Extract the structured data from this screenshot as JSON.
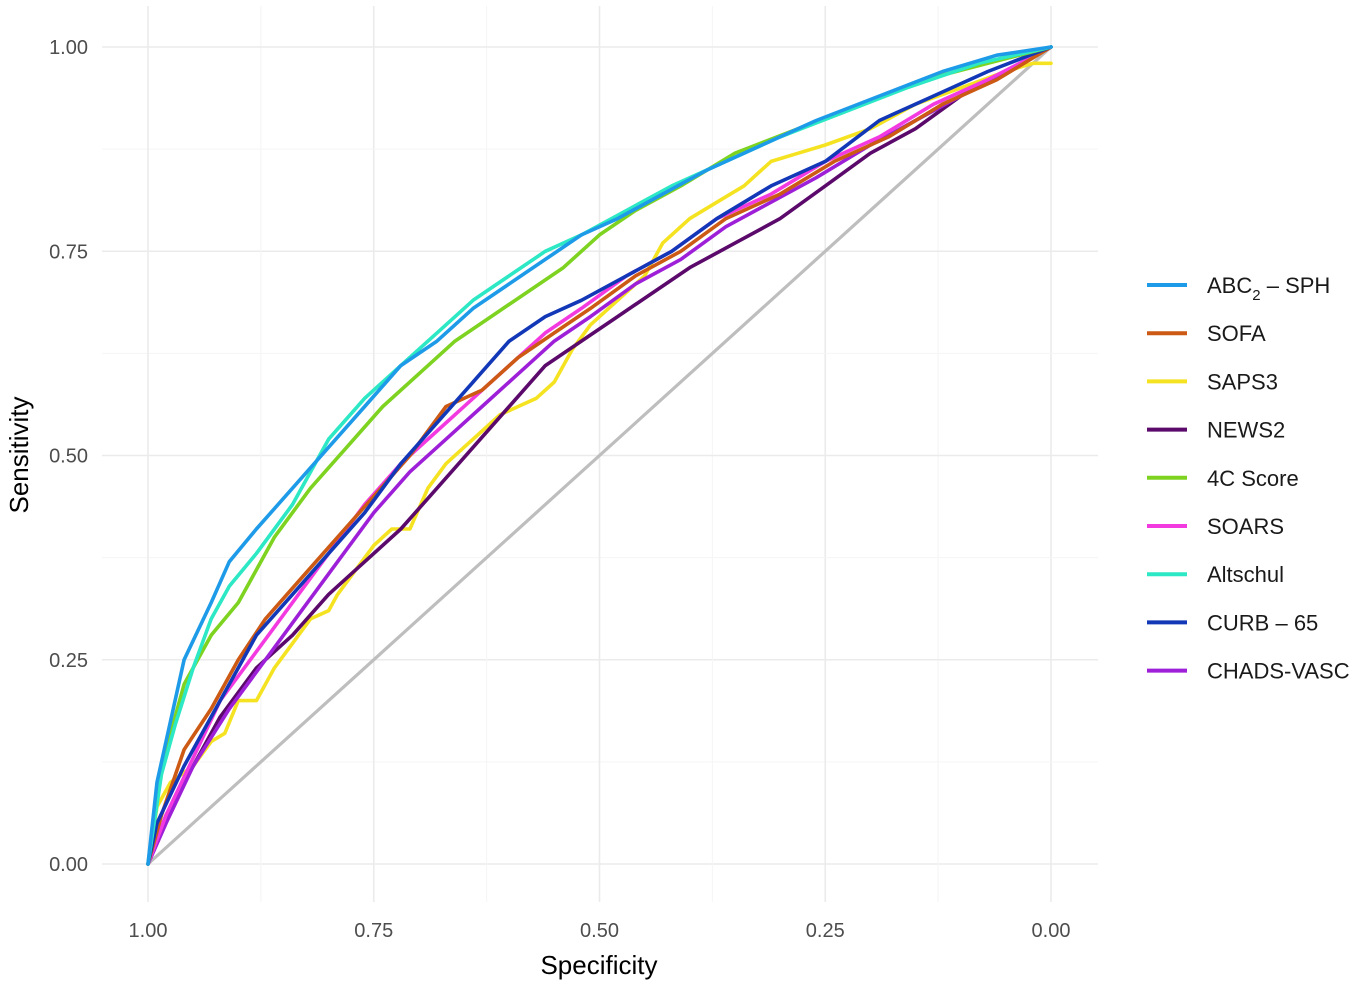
{
  "chart_data": {
    "type": "line",
    "title": "",
    "xlabel": "Specificity",
    "ylabel": "Sensitivity",
    "x_reversed": true,
    "xlim": [
      1.0,
      0.0
    ],
    "ylim": [
      0.0,
      1.0
    ],
    "x_ticks": [
      "1.00",
      "0.75",
      "0.50",
      "0.25",
      "0.00"
    ],
    "y_ticks": [
      "0.00",
      "0.25",
      "0.50",
      "0.75",
      "1.00"
    ],
    "grid": true,
    "legend_position": "right",
    "reference_line": {
      "color": "#bebebe",
      "points": [
        [
          1.0,
          0.0
        ],
        [
          0.0,
          1.0
        ]
      ]
    },
    "series": [
      {
        "name": "SAPS3",
        "label_main": "SAPS3",
        "color": "#f5e322",
        "points": [
          [
            1,
            0
          ],
          [
            0.99,
            0.07
          ],
          [
            0.975,
            0.1
          ],
          [
            0.95,
            0.12
          ],
          [
            0.93,
            0.15
          ],
          [
            0.915,
            0.16
          ],
          [
            0.9,
            0.2
          ],
          [
            0.88,
            0.2
          ],
          [
            0.86,
            0.24
          ],
          [
            0.84,
            0.27
          ],
          [
            0.82,
            0.3
          ],
          [
            0.8,
            0.31
          ],
          [
            0.79,
            0.33
          ],
          [
            0.77,
            0.36
          ],
          [
            0.75,
            0.39
          ],
          [
            0.73,
            0.41
          ],
          [
            0.71,
            0.41
          ],
          [
            0.69,
            0.46
          ],
          [
            0.67,
            0.49
          ],
          [
            0.65,
            0.51
          ],
          [
            0.63,
            0.53
          ],
          [
            0.61,
            0.55
          ],
          [
            0.59,
            0.56
          ],
          [
            0.57,
            0.57
          ],
          [
            0.55,
            0.59
          ],
          [
            0.53,
            0.63
          ],
          [
            0.51,
            0.66
          ],
          [
            0.48,
            0.69
          ],
          [
            0.45,
            0.72
          ],
          [
            0.43,
            0.76
          ],
          [
            0.4,
            0.79
          ],
          [
            0.37,
            0.81
          ],
          [
            0.34,
            0.83
          ],
          [
            0.31,
            0.86
          ],
          [
            0.28,
            0.87
          ],
          [
            0.25,
            0.88
          ],
          [
            0.2,
            0.9
          ],
          [
            0.15,
            0.93
          ],
          [
            0.1,
            0.95
          ],
          [
            0.05,
            0.97
          ],
          [
            0.02,
            0.98
          ],
          [
            0,
            0.98
          ]
        ]
      },
      {
        "name": "NEWS2",
        "label_main": "NEWS2",
        "color": "#5b0a6b",
        "points": [
          [
            1,
            0
          ],
          [
            0.98,
            0.06
          ],
          [
            0.95,
            0.12
          ],
          [
            0.92,
            0.18
          ],
          [
            0.88,
            0.24
          ],
          [
            0.84,
            0.28
          ],
          [
            0.8,
            0.33
          ],
          [
            0.76,
            0.37
          ],
          [
            0.72,
            0.41
          ],
          [
            0.68,
            0.46
          ],
          [
            0.64,
            0.51
          ],
          [
            0.6,
            0.56
          ],
          [
            0.56,
            0.61
          ],
          [
            0.52,
            0.64
          ],
          [
            0.48,
            0.67
          ],
          [
            0.44,
            0.7
          ],
          [
            0.4,
            0.73
          ],
          [
            0.35,
            0.76
          ],
          [
            0.3,
            0.79
          ],
          [
            0.25,
            0.83
          ],
          [
            0.2,
            0.87
          ],
          [
            0.15,
            0.9
          ],
          [
            0.1,
            0.94
          ],
          [
            0.05,
            0.97
          ],
          [
            0,
            1
          ]
        ]
      },
      {
        "name": "CHADS-VASC",
        "label_main": "CHADS-VASC",
        "color": "#9e1fd8",
        "points": [
          [
            1,
            0
          ],
          [
            0.98,
            0.05
          ],
          [
            0.95,
            0.12
          ],
          [
            0.91,
            0.19
          ],
          [
            0.87,
            0.25
          ],
          [
            0.83,
            0.31
          ],
          [
            0.79,
            0.37
          ],
          [
            0.75,
            0.43
          ],
          [
            0.71,
            0.48
          ],
          [
            0.67,
            0.52
          ],
          [
            0.63,
            0.56
          ],
          [
            0.59,
            0.6
          ],
          [
            0.55,
            0.64
          ],
          [
            0.51,
            0.67
          ],
          [
            0.46,
            0.71
          ],
          [
            0.41,
            0.74
          ],
          [
            0.36,
            0.78
          ],
          [
            0.31,
            0.81
          ],
          [
            0.26,
            0.84
          ],
          [
            0.2,
            0.88
          ],
          [
            0.15,
            0.91
          ],
          [
            0.1,
            0.94
          ],
          [
            0.05,
            0.97
          ],
          [
            0,
            1
          ]
        ]
      },
      {
        "name": "SOARS",
        "label_main": "SOARS",
        "color": "#f23ae0",
        "points": [
          [
            1,
            0
          ],
          [
            0.98,
            0.06
          ],
          [
            0.95,
            0.13
          ],
          [
            0.92,
            0.2
          ],
          [
            0.88,
            0.26
          ],
          [
            0.84,
            0.32
          ],
          [
            0.8,
            0.38
          ],
          [
            0.76,
            0.44
          ],
          [
            0.72,
            0.49
          ],
          [
            0.68,
            0.53
          ],
          [
            0.64,
            0.57
          ],
          [
            0.6,
            0.61
          ],
          [
            0.56,
            0.65
          ],
          [
            0.52,
            0.68
          ],
          [
            0.47,
            0.72
          ],
          [
            0.42,
            0.75
          ],
          [
            0.37,
            0.79
          ],
          [
            0.31,
            0.82
          ],
          [
            0.25,
            0.86
          ],
          [
            0.19,
            0.89
          ],
          [
            0.13,
            0.93
          ],
          [
            0.07,
            0.96
          ],
          [
            0,
            1
          ]
        ]
      },
      {
        "name": "SOFA",
        "label_main": "SOFA",
        "color": "#cc5a14",
        "points": [
          [
            1,
            0
          ],
          [
            0.985,
            0.06
          ],
          [
            0.96,
            0.14
          ],
          [
            0.93,
            0.19
          ],
          [
            0.9,
            0.25
          ],
          [
            0.87,
            0.3
          ],
          [
            0.83,
            0.35
          ],
          [
            0.79,
            0.4
          ],
          [
            0.75,
            0.45
          ],
          [
            0.71,
            0.5
          ],
          [
            0.67,
            0.56
          ],
          [
            0.63,
            0.58
          ],
          [
            0.59,
            0.62
          ],
          [
            0.55,
            0.65
          ],
          [
            0.51,
            0.68
          ],
          [
            0.46,
            0.72
          ],
          [
            0.41,
            0.75
          ],
          [
            0.36,
            0.79
          ],
          [
            0.3,
            0.82
          ],
          [
            0.24,
            0.86
          ],
          [
            0.18,
            0.89
          ],
          [
            0.12,
            0.93
          ],
          [
            0.06,
            0.96
          ],
          [
            0,
            1
          ]
        ]
      },
      {
        "name": "CURB-65",
        "label_main": "CURB",
        "label_tail": "65",
        "color": "#1238b8",
        "points": [
          [
            1,
            0
          ],
          [
            0.99,
            0.05
          ],
          [
            0.96,
            0.12
          ],
          [
            0.93,
            0.18
          ],
          [
            0.9,
            0.24
          ],
          [
            0.88,
            0.28
          ],
          [
            0.84,
            0.33
          ],
          [
            0.8,
            0.38
          ],
          [
            0.76,
            0.43
          ],
          [
            0.72,
            0.49
          ],
          [
            0.68,
            0.54
          ],
          [
            0.64,
            0.59
          ],
          [
            0.6,
            0.64
          ],
          [
            0.56,
            0.67
          ],
          [
            0.52,
            0.69
          ],
          [
            0.47,
            0.72
          ],
          [
            0.42,
            0.75
          ],
          [
            0.37,
            0.79
          ],
          [
            0.31,
            0.83
          ],
          [
            0.25,
            0.86
          ],
          [
            0.19,
            0.91
          ],
          [
            0.13,
            0.94
          ],
          [
            0.07,
            0.97
          ],
          [
            0,
            1
          ]
        ]
      },
      {
        "name": "4C Score",
        "label_main": "4C Score",
        "color": "#7ed321",
        "points": [
          [
            1,
            0
          ],
          [
            0.985,
            0.12
          ],
          [
            0.96,
            0.22
          ],
          [
            0.93,
            0.28
          ],
          [
            0.9,
            0.32
          ],
          [
            0.86,
            0.4
          ],
          [
            0.82,
            0.46
          ],
          [
            0.78,
            0.51
          ],
          [
            0.74,
            0.56
          ],
          [
            0.7,
            0.6
          ],
          [
            0.66,
            0.64
          ],
          [
            0.62,
            0.67
          ],
          [
            0.58,
            0.7
          ],
          [
            0.54,
            0.73
          ],
          [
            0.5,
            0.77
          ],
          [
            0.46,
            0.8
          ],
          [
            0.41,
            0.83
          ],
          [
            0.35,
            0.87
          ],
          [
            0.28,
            0.9
          ],
          [
            0.21,
            0.93
          ],
          [
            0.14,
            0.96
          ],
          [
            0.07,
            0.98
          ],
          [
            0,
            1
          ]
        ]
      },
      {
        "name": "Altschul",
        "label_main": "Altschul",
        "color": "#2ce8c4",
        "points": [
          [
            1,
            0
          ],
          [
            0.985,
            0.11
          ],
          [
            0.97,
            0.17
          ],
          [
            0.95,
            0.24
          ],
          [
            0.93,
            0.3
          ],
          [
            0.91,
            0.34
          ],
          [
            0.88,
            0.38
          ],
          [
            0.84,
            0.44
          ],
          [
            0.8,
            0.52
          ],
          [
            0.76,
            0.57
          ],
          [
            0.72,
            0.61
          ],
          [
            0.68,
            0.65
          ],
          [
            0.64,
            0.69
          ],
          [
            0.6,
            0.72
          ],
          [
            0.56,
            0.75
          ],
          [
            0.52,
            0.77
          ],
          [
            0.47,
            0.8
          ],
          [
            0.42,
            0.83
          ],
          [
            0.36,
            0.86
          ],
          [
            0.3,
            0.89
          ],
          [
            0.23,
            0.92
          ],
          [
            0.16,
            0.95
          ],
          [
            0.08,
            0.98
          ],
          [
            0,
            1
          ]
        ]
      },
      {
        "name": "ABC2 - SPH",
        "label_main": "ABC",
        "label_sub": "2",
        "label_tail": "SPH",
        "color": "#1e9be8",
        "points": [
          [
            1,
            0
          ],
          [
            0.99,
            0.1
          ],
          [
            0.96,
            0.25
          ],
          [
            0.93,
            0.32
          ],
          [
            0.91,
            0.37
          ],
          [
            0.88,
            0.41
          ],
          [
            0.84,
            0.46
          ],
          [
            0.8,
            0.51
          ],
          [
            0.76,
            0.56
          ],
          [
            0.72,
            0.61
          ],
          [
            0.68,
            0.64
          ],
          [
            0.64,
            0.68
          ],
          [
            0.6,
            0.71
          ],
          [
            0.56,
            0.74
          ],
          [
            0.52,
            0.77
          ],
          [
            0.48,
            0.79
          ],
          [
            0.43,
            0.82
          ],
          [
            0.38,
            0.85
          ],
          [
            0.32,
            0.88
          ],
          [
            0.26,
            0.91
          ],
          [
            0.19,
            0.94
          ],
          [
            0.12,
            0.97
          ],
          [
            0.06,
            0.99
          ],
          [
            0,
            1
          ]
        ]
      }
    ],
    "legend_order": [
      "ABC2 - SPH",
      "SOFA",
      "SAPS3",
      "NEWS2",
      "4C Score",
      "SOARS",
      "Altschul",
      "CURB-65",
      "CHADS-VASC"
    ]
  }
}
